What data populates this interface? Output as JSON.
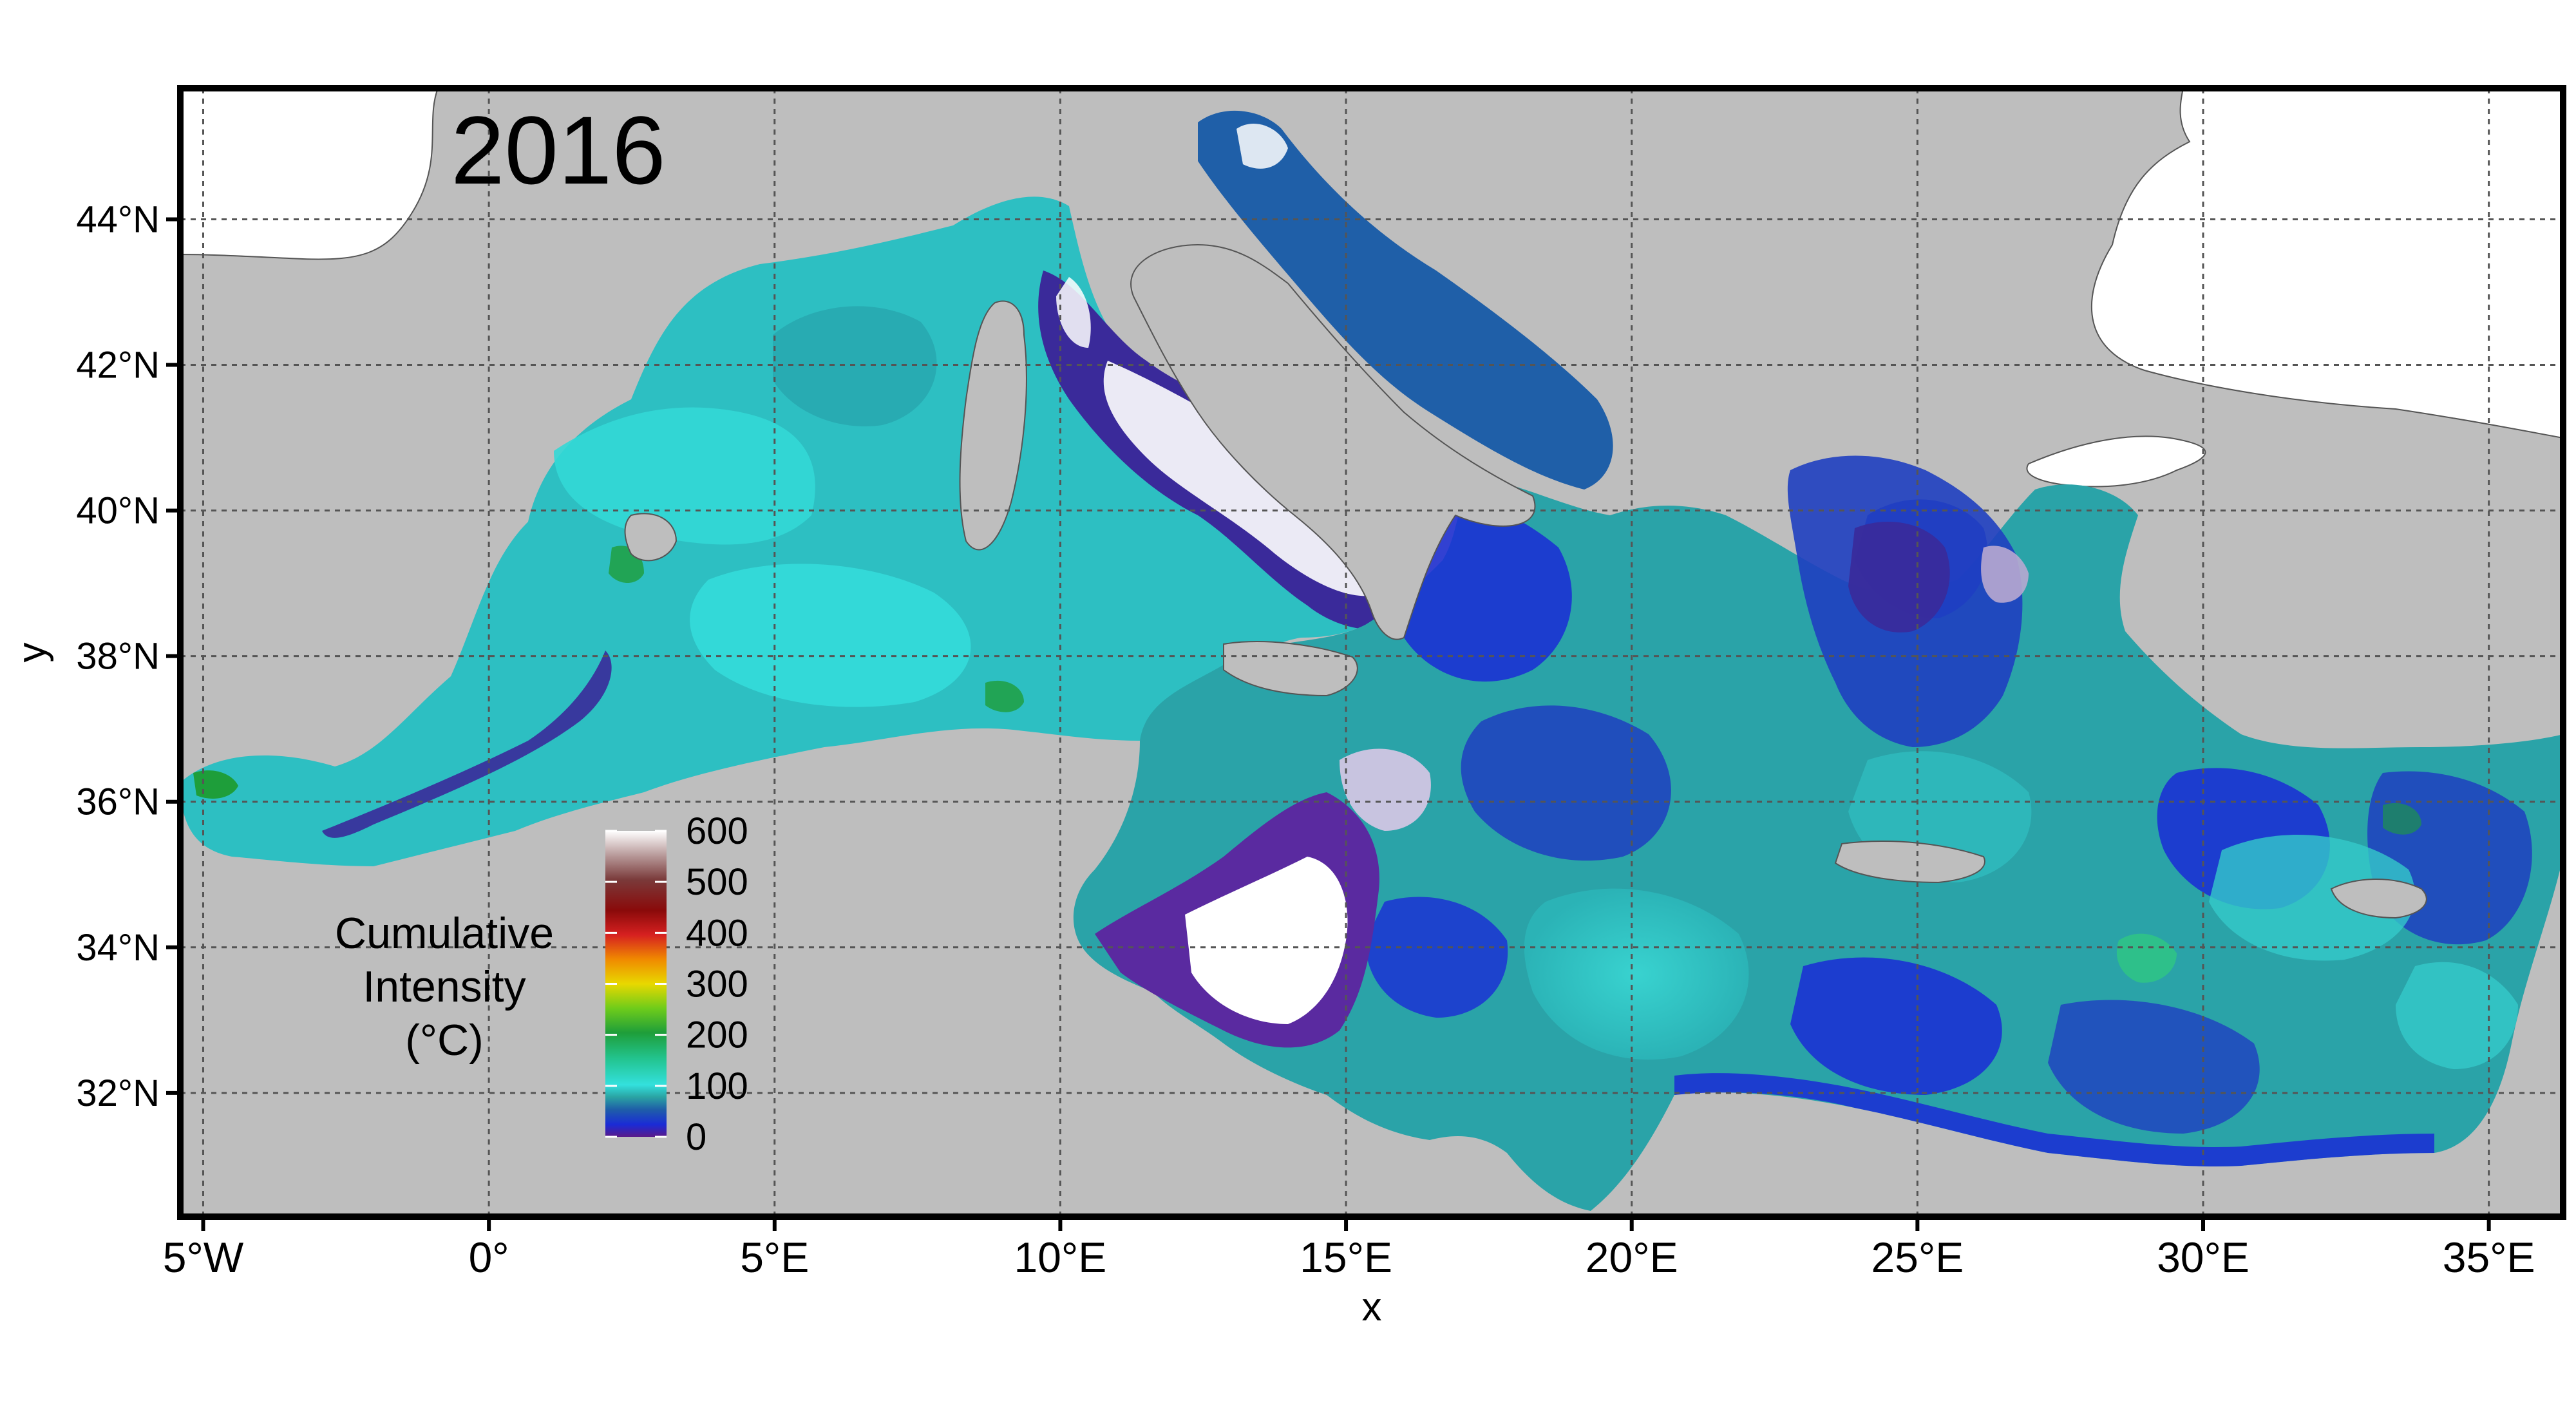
{
  "map": {
    "year_label": "2016",
    "x_axis_title": "x",
    "y_axis_title": "y",
    "x_ticks": [
      {
        "lon": -5,
        "label": "5°W"
      },
      {
        "lon": 0,
        "label": "0°"
      },
      {
        "lon": 5,
        "label": "5°E"
      },
      {
        "lon": 10,
        "label": "10°E"
      },
      {
        "lon": 15,
        "label": "15°E"
      },
      {
        "lon": 20,
        "label": "20°E"
      },
      {
        "lon": 25,
        "label": "25°E"
      },
      {
        "lon": 30,
        "label": "30°E"
      },
      {
        "lon": 35,
        "label": "35°E"
      }
    ],
    "y_ticks": [
      {
        "lat": 32,
        "label": "32°N"
      },
      {
        "lat": 34,
        "label": "34°N"
      },
      {
        "lat": 36,
        "label": "36°N"
      },
      {
        "lat": 38,
        "label": "38°N"
      },
      {
        "lat": 40,
        "label": "40°N"
      },
      {
        "lat": 42,
        "label": "42°N"
      },
      {
        "lat": 44,
        "label": "44°N"
      }
    ],
    "extent": {
      "lon_min": -5.4,
      "lon_max": 36.3,
      "lat_min": 30.3,
      "lat_max": 45.8
    },
    "legend": {
      "title_lines": [
        "Cumulative",
        "Intensity",
        "(°C)"
      ],
      "ticks": [
        {
          "value": 0,
          "label": "0"
        },
        {
          "value": 100,
          "label": "100"
        },
        {
          "value": 200,
          "label": "200"
        },
        {
          "value": 300,
          "label": "300"
        },
        {
          "value": 400,
          "label": "400"
        },
        {
          "value": 500,
          "label": "500"
        },
        {
          "value": 600,
          "label": "600"
        }
      ],
      "range": [
        0,
        600
      ],
      "colors": [
        "#5a1a8a",
        "#1a2bd6",
        "#1f5fa8",
        "#2aa3a3",
        "#33e0dd",
        "#22c28a",
        "#1e9e3a",
        "#6fcc1a",
        "#e8d800",
        "#f08a00",
        "#d62020",
        "#8a0a0a",
        "#7a3a3a",
        "#b89a9a",
        "#ffffff"
      ]
    },
    "colors": {
      "land": "#ffffff",
      "masked_ocean": "#bebebe",
      "grid": "#555555",
      "frame": "#000000",
      "coast": "#555555"
    }
  }
}
